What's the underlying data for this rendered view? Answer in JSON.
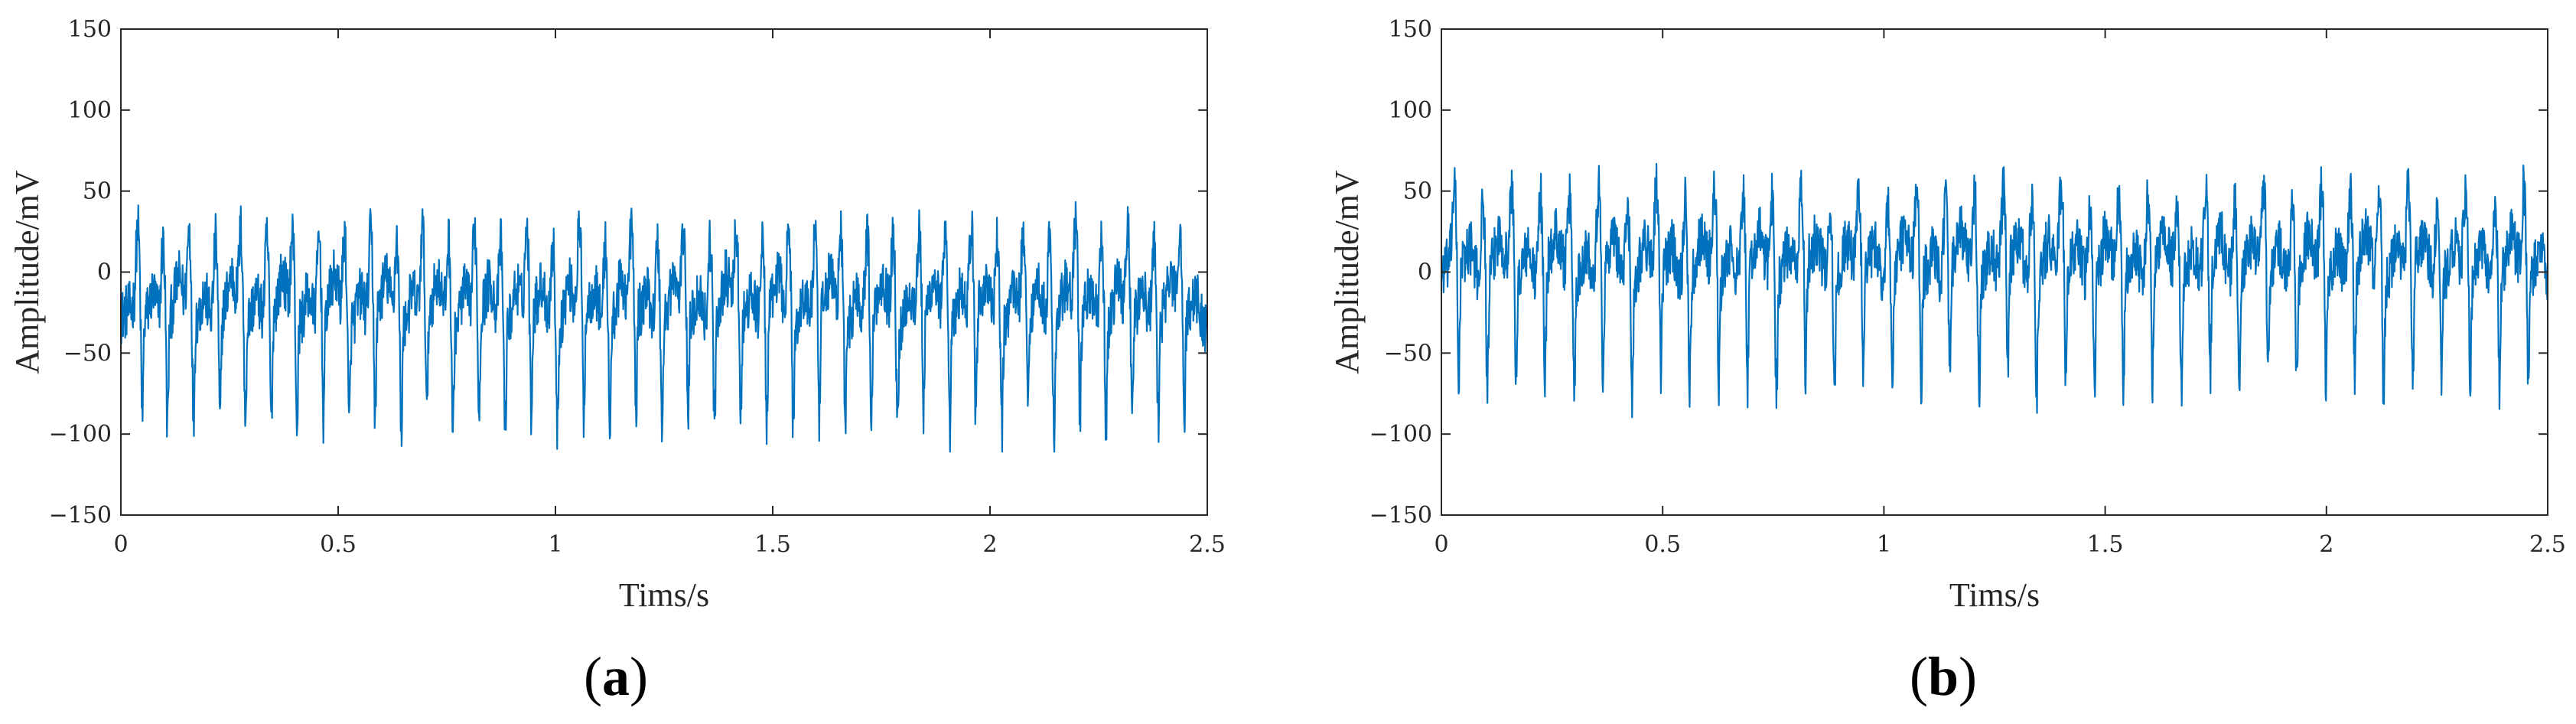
{
  "chart_data": [
    {
      "type": "line",
      "panel_label": "(a)",
      "xlabel": "Tims/s",
      "ylabel": "Amplitude/mV",
      "xlim": [
        0,
        2.5
      ],
      "ylim": [
        -150,
        150
      ],
      "x_ticks": [
        "0",
        "0.5",
        "1",
        "1.5",
        "2",
        "2.5"
      ],
      "y_ticks": [
        "150",
        "100",
        "50",
        "0",
        "−50",
        "−100",
        "−150"
      ],
      "grid": false,
      "color": "#0072BD",
      "series": [
        {
          "signal_description": "noisy periodic pulse train",
          "sample_rate_hz": 1000,
          "duration_s": 2.5,
          "baseline_mv": -28,
          "positive_peak_mv": 42,
          "negative_peak_mv": -115,
          "beats": [
            0.045,
            0.103,
            0.163,
            0.224,
            0.282,
            0.342,
            0.401,
            0.462,
            0.521,
            0.581,
            0.641,
            0.7,
            0.76,
            0.82,
            0.88,
            0.94,
            1.0,
            1.061,
            1.121,
            1.181,
            1.241,
            1.301,
            1.362,
            1.422,
            1.482,
            1.543,
            1.603,
            1.663,
            1.723,
            1.783,
            1.843,
            1.903,
            1.963,
            2.023,
            2.083,
            2.143,
            2.203,
            2.263,
            2.323,
            2.383,
            2.443
          ]
        }
      ]
    },
    {
      "type": "line",
      "panel_label": "(b)",
      "xlabel": "Tims/s",
      "ylabel": "Amplitude/mV",
      "xlim": [
        0,
        2.5
      ],
      "ylim": [
        -150,
        150
      ],
      "x_ticks": [
        "0",
        "0.5",
        "1",
        "1.5",
        "2",
        "2.5"
      ],
      "y_ticks": [
        "150",
        "100",
        "50",
        "0",
        "−50",
        "−100",
        "−150"
      ],
      "grid": false,
      "color": "#0072BD",
      "series": [
        {
          "signal_description": "noisy periodic pulse train",
          "sample_rate_hz": 1000,
          "duration_s": 2.5,
          "baseline_mv": 0,
          "positive_peak_mv": 65,
          "negative_peak_mv": -92,
          "beats": [
            0.035,
            0.1,
            0.165,
            0.23,
            0.296,
            0.361,
            0.427,
            0.492,
            0.557,
            0.623,
            0.688,
            0.753,
            0.819,
            0.884,
            0.949,
            1.015,
            1.08,
            1.145,
            1.211,
            1.276,
            1.341,
            1.407,
            1.472,
            1.537,
            1.603,
            1.668,
            1.733,
            1.799,
            1.864,
            1.929,
            1.995,
            2.06,
            2.125,
            2.191,
            2.256,
            2.321,
            2.387,
            2.452
          ]
        }
      ]
    }
  ]
}
